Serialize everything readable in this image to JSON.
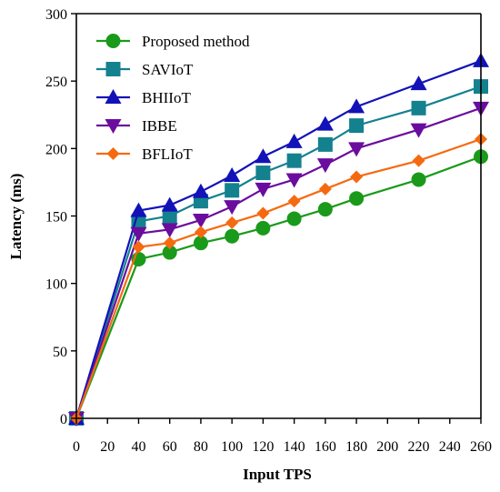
{
  "chart_data": {
    "type": "line",
    "xlabel": "Input TPS",
    "ylabel": "Latency (ms)",
    "xlim": [
      0,
      260
    ],
    "ylim": [
      0,
      300
    ],
    "xticks": [
      0,
      20,
      40,
      60,
      80,
      100,
      120,
      140,
      160,
      180,
      200,
      220,
      240,
      260
    ],
    "yticks": [
      0,
      50,
      100,
      150,
      200,
      250,
      300
    ],
    "grid": false,
    "legend_position": "top-left",
    "x": [
      0,
      40,
      60,
      80,
      100,
      120,
      140,
      160,
      180,
      220,
      260
    ],
    "series": [
      {
        "name": "Proposed method",
        "color": "#1a9a1a",
        "marker": "circle",
        "values": [
          0,
          118,
          123,
          130,
          135,
          141,
          148,
          155,
          163,
          177,
          194
        ]
      },
      {
        "name": "SAVIoT",
        "color": "#14818f",
        "marker": "square",
        "values": [
          0,
          146,
          150,
          161,
          169,
          182,
          191,
          203,
          217,
          230,
          246
        ]
      },
      {
        "name": "BHIIoT",
        "color": "#1212b8",
        "marker": "triangle-up",
        "values": [
          0,
          154,
          158,
          168,
          180,
          194,
          205,
          218,
          231,
          248,
          265
        ]
      },
      {
        "name": "IBBE",
        "color": "#6a0d9e",
        "marker": "triangle-down",
        "values": [
          0,
          137,
          140,
          147,
          157,
          170,
          177,
          188,
          200,
          214,
          230
        ]
      },
      {
        "name": "BFLIoT",
        "color": "#f56a10",
        "marker": "diamond",
        "values": [
          0,
          127,
          130,
          138,
          145,
          152,
          161,
          170,
          179,
          191,
          207
        ]
      }
    ]
  }
}
